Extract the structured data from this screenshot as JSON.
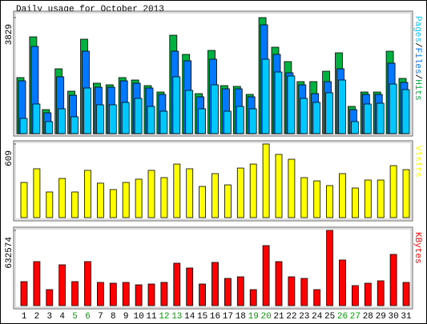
{
  "chart_data": [
    {
      "type": "bar",
      "title": "Daily usage for October 2013",
      "ylim": [
        0,
        3829
      ],
      "yticks": [
        3829
      ],
      "legend_separator": "/",
      "series": [
        {
          "name": "Pages",
          "color": "#00c8ff",
          "values": [
            502,
            977,
            396,
            819,
            555,
            1505,
            951,
            951,
            1030,
            1162,
            898,
            739,
            1875,
            1426,
            819,
            1611,
            739,
            898,
            819,
            2456,
            2033,
            1901,
            1162,
            1030,
            1347,
            1769,
            396,
            977,
            1003,
            1637,
            1452
          ]
        },
        {
          "name": "Files",
          "color": "#0078ff",
          "values": [
            1743,
            2878,
            687,
            1875,
            1267,
            2720,
            1532,
            1532,
            1743,
            1664,
            1505,
            1294,
            2720,
            2403,
            1215,
            2456,
            1479,
            1479,
            1215,
            3591,
            2614,
            2007,
            1611,
            1320,
            1716,
            2139,
            792,
            1294,
            1294,
            2324,
            1690
          ]
        },
        {
          "name": "Hits",
          "color": "#00b040",
          "values": [
            1849,
            3195,
            792,
            2139,
            1400,
            3116,
            1664,
            1611,
            1849,
            1769,
            1584,
            1373,
            3248,
            2614,
            1320,
            2746,
            1584,
            1558,
            1294,
            3829,
            2852,
            2377,
            1716,
            1716,
            2060,
            2667,
            898,
            1373,
            1373,
            2720,
            1822
          ]
        }
      ]
    },
    {
      "type": "bar",
      "ylim": [
        0,
        609
      ],
      "yticks": [
        609
      ],
      "series": [
        {
          "name": "Visits",
          "color": "#ffff00",
          "values": [
            291,
            404,
            212,
            324,
            212,
            391,
            285,
            232,
            291,
            318,
            391,
            331,
            443,
            404,
            258,
            364,
            271,
            410,
            443,
            609,
            523,
            483,
            331,
            304,
            265,
            364,
            245,
            311,
            311,
            430,
            397
          ]
        }
      ]
    },
    {
      "type": "bar",
      "ylim": [
        0,
        632574
      ],
      "yticks": [
        632574
      ],
      "series": [
        {
          "name": "KBytes",
          "color": "#ff0000",
          "values": [
            201885,
            370120,
            134590,
            343200,
            201885,
            370120,
            195160,
            188430,
            195160,
            175000,
            181700,
            195160,
            356660,
            316280,
            181700,
            363390,
            228800,
            242260,
            134590,
            504710,
            370120,
            242260,
            228800,
            134590,
            632574,
            383580,
            168240,
            188430,
            208610,
            430690,
            195160
          ]
        }
      ],
      "categories": [
        "1",
        "2",
        "3",
        "4",
        "5",
        "6",
        "7",
        "8",
        "9",
        "10",
        "11",
        "12",
        "13",
        "14",
        "15",
        "16",
        "17",
        "18",
        "19",
        "20",
        "21",
        "22",
        "23",
        "24",
        "25",
        "26",
        "27",
        "28",
        "29",
        "30",
        "31"
      ],
      "category_colors": [
        "#000000",
        "#000000",
        "#000000",
        "#000000",
        "#00a000",
        "#00a000",
        "#000000",
        "#000000",
        "#000000",
        "#000000",
        "#000000",
        "#00a000",
        "#00a000",
        "#000000",
        "#000000",
        "#000000",
        "#000000",
        "#000000",
        "#00a000",
        "#00a000",
        "#000000",
        "#000000",
        "#000000",
        "#000000",
        "#000000",
        "#00a000",
        "#00a000",
        "#000000",
        "#000000",
        "#000000",
        "#000000"
      ]
    }
  ]
}
